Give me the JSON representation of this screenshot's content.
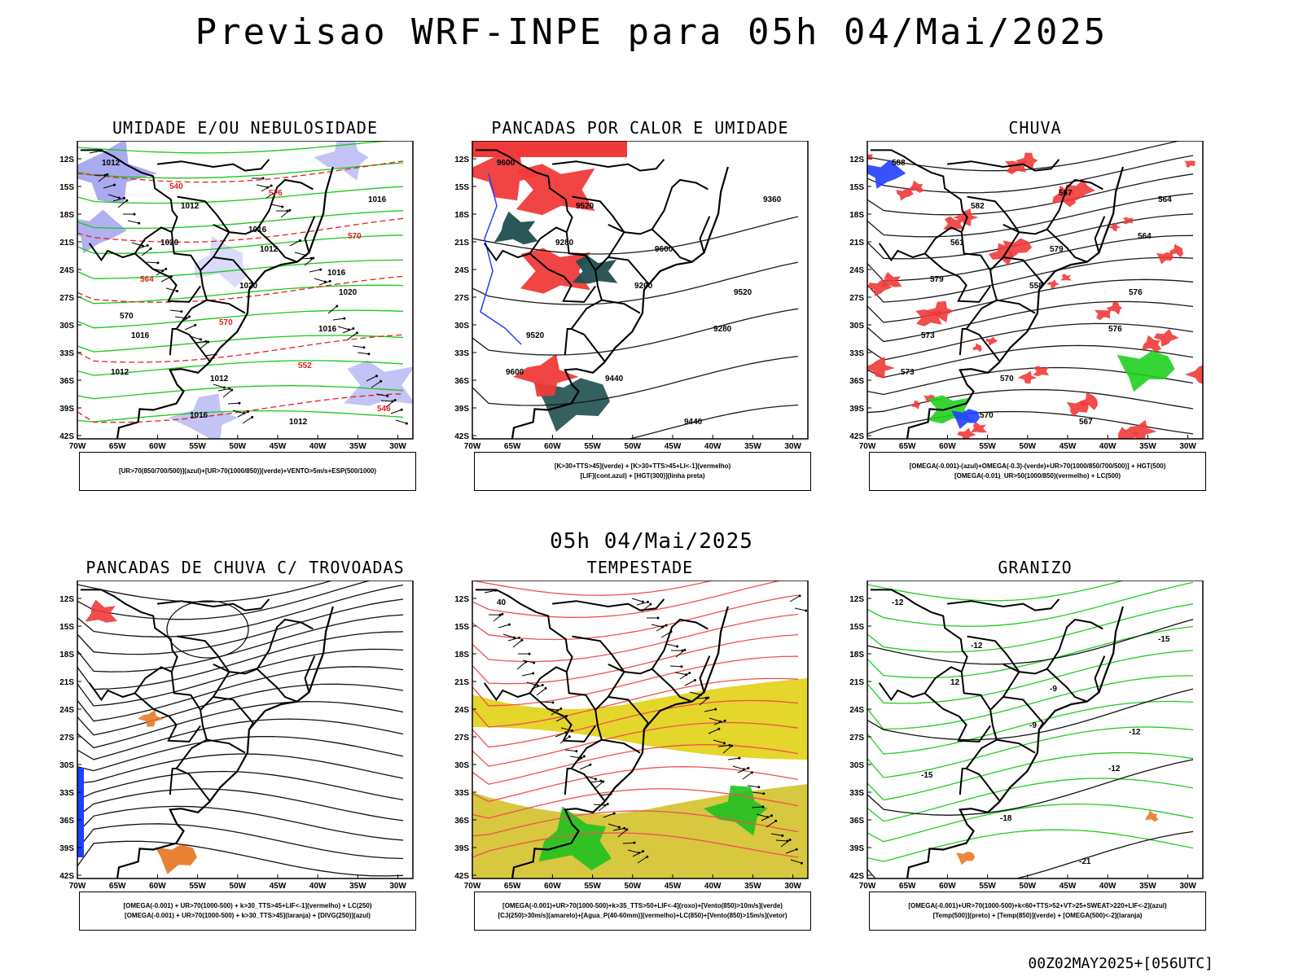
{
  "title": "Previsao WRF-INPE  para 05h 04/Mai/2025",
  "middle_label": "05h 04/Mai/2025",
  "footer": "00Z02MAY2025+[056UTC]",
  "lat_ticks": [
    "12S",
    "15S",
    "18S",
    "21S",
    "24S",
    "27S",
    "30S",
    "33S",
    "36S",
    "39S",
    "42S"
  ],
  "lon_ticks": [
    "70W",
    "65W",
    "60W",
    "55W",
    "50W",
    "45W",
    "40W",
    "35W",
    "30W"
  ],
  "panels": [
    {
      "title": "UMIDADE E/OU NEBULOSIDADE",
      "legend": [
        "[UR>70(850/700/500)](azul)+[UR>70(1000/850)](verde)+VENTO>5m/s+ESP(500/1000)"
      ],
      "contour_labels": [
        "1012",
        "1012",
        "1012",
        "1020",
        "1016",
        "1012",
        "1012",
        "1016",
        "1020",
        "1020",
        "1016",
        "1012",
        "1016",
        "576",
        "570",
        "564",
        "570",
        "552",
        "546",
        "540",
        "1016",
        "1016",
        "570"
      ]
    },
    {
      "title": "PANCADAS POR CALOR E UMIDADE",
      "legend": [
        "[K>30+TTS>45](verde) + [K>30+TTS>45+LI<-1](vermelho)",
        "[LIF](cont.azul) + [HGT(300)](linha preta)"
      ],
      "contour_labels": [
        "9600",
        "9520",
        "9600",
        "9520",
        "9520",
        "9440",
        "9440",
        "9360",
        "9280",
        "9200",
        "9280",
        "9600"
      ]
    },
    {
      "title": "CHUVA",
      "legend": [
        "[OMEGA(-0.001)-(azul)+OMEGA(-0.3)-(verde)+UR>70(1000/850/700/500)] + HGT(500)",
        "[OMEGA(-0.01)_UR>50(1000/850)(vermelho) + LC(500)"
      ],
      "contour_labels": [
        "588",
        "582",
        "579",
        "576",
        "573",
        "570",
        "567",
        "564",
        "561",
        "558",
        "576",
        "573",
        "570",
        "567",
        "564",
        "579"
      ]
    },
    {
      "title": "PANCADAS DE CHUVA C/ TROVOADAS",
      "legend": [
        "[OMEGA(-0.001) + UR>70(1000-500) + k>30_TTS>45+LIF<-1](vermelho) + LC(250)",
        "[OMEGA(-0.001) + UR>70(1000-500) + k>30_TTS>45](laranja) + [DIVG(250)](azul)"
      ],
      "contour_labels": []
    },
    {
      "title": "TEMPESTADE",
      "legend": [
        "[OMEGA(-0.001)+UR>70(1000-500)+k>35_TTS>50+LIF<-4](roxo)+[Vento(850)>10m/s](verde)",
        "[CJ(250)>30m/s](amarelo)+[Agua_P(40-60mm)](vermelho)+LC(850)+[Vento(850)>15m/s](vetor)"
      ],
      "contour_labels": [
        "40"
      ]
    },
    {
      "title": "GRANIZO",
      "legend": [
        "[OMEGA(-0.001)+UR>70(1000-500)+k<60+TTS>52+VT>25+SWEAT>220+LIF<-2](azul)",
        "[Temp(500)](preto) + [Temp(850)](verde) + [OMEGA(500)<-2](laranja)"
      ],
      "contour_labels": [
        "-12",
        "-12",
        "-9",
        "-12",
        "-15",
        "-18",
        "-21",
        "-15",
        "12",
        "-9",
        "-12"
      ]
    }
  ]
}
